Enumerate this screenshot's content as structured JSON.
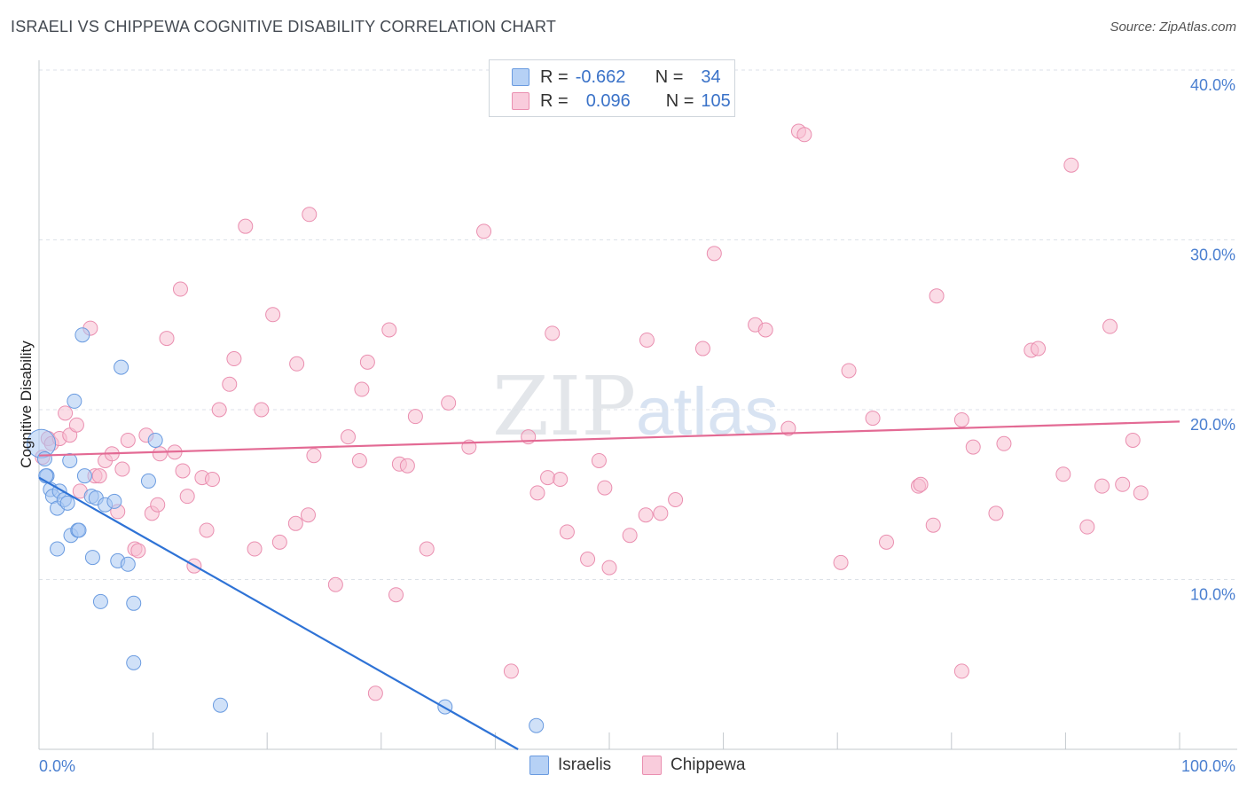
{
  "title": "ISRAELI VS CHIPPEWA COGNITIVE DISABILITY CORRELATION CHART",
  "source": "Source: ZipAtlas.com",
  "watermark": {
    "zip": "ZIP",
    "atlas": "atlas"
  },
  "legend": {
    "rows": [
      {
        "r_label": "R =",
        "r_value": "-0.662",
        "n_label": "N =",
        "n_value": "34"
      },
      {
        "r_label": "R =",
        "r_value": "0.096",
        "n_label": "N =",
        "n_value": "105"
      }
    ]
  },
  "bottom_legend": {
    "israelis": "Israelis",
    "chippewa": "Chippewa"
  },
  "colors": {
    "israelis_fill": "#a9c8f2",
    "israelis_stroke": "#6a9be0",
    "israelis_line": "#2f73d6",
    "chippewa_fill": "#f7bfd2",
    "chippewa_stroke": "#ea8fb0",
    "chippewa_line": "#e36a94",
    "tick_text": "#4a7fd0",
    "grid": "#dde2e8"
  },
  "chart_data": {
    "type": "scatter",
    "title": "ISRAELI VS CHIPPEWA COGNITIVE DISABILITY CORRELATION CHART",
    "xlabel": "",
    "ylabel": "Cognitive Disability",
    "xlim": [
      0,
      100
    ],
    "ylim": [
      0,
      40
    ],
    "x_tick_labels": [
      "0.0%",
      "100.0%"
    ],
    "y_ticks": [
      10,
      20,
      30,
      40
    ],
    "y_tick_labels": [
      "10.0%",
      "20.0%",
      "30.0%",
      "40.0%"
    ],
    "series": [
      {
        "name": "Israelis",
        "r": -0.662,
        "n": 34,
        "trend": {
          "x": [
            0,
            42
          ],
          "y": [
            16.0,
            0.0
          ]
        },
        "points": [
          [
            0.2,
            18.0
          ],
          [
            0.5,
            17.1
          ],
          [
            0.7,
            16.1
          ],
          [
            1.0,
            15.3
          ],
          [
            1.2,
            14.9
          ],
          [
            1.6,
            14.2
          ],
          [
            1.8,
            15.2
          ],
          [
            2.2,
            14.7
          ],
          [
            2.5,
            14.5
          ],
          [
            2.7,
            17.0
          ],
          [
            2.8,
            12.6
          ],
          [
            3.1,
            20.5
          ],
          [
            3.4,
            12.9
          ],
          [
            3.5,
            12.9
          ],
          [
            3.8,
            24.4
          ],
          [
            4.0,
            16.1
          ],
          [
            4.6,
            14.9
          ],
          [
            4.7,
            11.3
          ],
          [
            5.0,
            14.8
          ],
          [
            5.4,
            8.7
          ],
          [
            5.8,
            14.4
          ],
          [
            6.6,
            14.6
          ],
          [
            6.9,
            11.1
          ],
          [
            7.2,
            22.5
          ],
          [
            7.8,
            10.9
          ],
          [
            8.3,
            5.1
          ],
          [
            8.3,
            8.6
          ],
          [
            9.6,
            15.8
          ],
          [
            10.2,
            18.2
          ],
          [
            15.9,
            2.6
          ],
          [
            35.6,
            2.5
          ],
          [
            43.6,
            1.4
          ],
          [
            1.6,
            11.8
          ],
          [
            0.6,
            16.1
          ]
        ]
      },
      {
        "name": "Chippewa",
        "r": 0.096,
        "n": 105,
        "trend": {
          "x": [
            0,
            100
          ],
          "y": [
            17.3,
            19.3
          ]
        },
        "points": [
          [
            0.3,
            17.2
          ],
          [
            0.8,
            18.3
          ],
          [
            1.1,
            18.0
          ],
          [
            1.8,
            18.3
          ],
          [
            2.3,
            19.8
          ],
          [
            2.7,
            18.5
          ],
          [
            3.3,
            19.1
          ],
          [
            3.6,
            15.2
          ],
          [
            4.5,
            24.8
          ],
          [
            4.9,
            16.1
          ],
          [
            5.3,
            16.1
          ],
          [
            5.8,
            17.0
          ],
          [
            6.4,
            17.4
          ],
          [
            6.9,
            14.0
          ],
          [
            7.3,
            16.5
          ],
          [
            7.8,
            18.2
          ],
          [
            8.4,
            11.8
          ],
          [
            8.7,
            11.7
          ],
          [
            9.4,
            18.5
          ],
          [
            9.9,
            13.9
          ],
          [
            10.4,
            14.4
          ],
          [
            10.6,
            17.4
          ],
          [
            11.2,
            24.2
          ],
          [
            11.9,
            17.5
          ],
          [
            12.4,
            27.1
          ],
          [
            12.6,
            16.4
          ],
          [
            13.0,
            14.9
          ],
          [
            13.6,
            10.8
          ],
          [
            14.3,
            16.0
          ],
          [
            14.7,
            12.9
          ],
          [
            15.2,
            15.9
          ],
          [
            15.8,
            20.0
          ],
          [
            16.7,
            21.5
          ],
          [
            17.1,
            23.0
          ],
          [
            18.1,
            30.8
          ],
          [
            18.9,
            11.8
          ],
          [
            19.5,
            20.0
          ],
          [
            20.5,
            25.6
          ],
          [
            21.1,
            12.2
          ],
          [
            22.5,
            13.3
          ],
          [
            22.6,
            22.7
          ],
          [
            23.6,
            13.8
          ],
          [
            23.7,
            31.5
          ],
          [
            24.1,
            17.3
          ],
          [
            26.0,
            9.7
          ],
          [
            27.1,
            18.4
          ],
          [
            28.1,
            17.0
          ],
          [
            28.3,
            21.2
          ],
          [
            28.8,
            22.8
          ],
          [
            29.5,
            3.3
          ],
          [
            30.7,
            24.7
          ],
          [
            31.3,
            9.1
          ],
          [
            31.6,
            16.8
          ],
          [
            32.3,
            16.7
          ],
          [
            33.0,
            19.6
          ],
          [
            34.0,
            11.8
          ],
          [
            35.9,
            20.4
          ],
          [
            37.7,
            17.8
          ],
          [
            39.0,
            30.5
          ],
          [
            41.4,
            4.6
          ],
          [
            42.9,
            18.4
          ],
          [
            43.7,
            15.1
          ],
          [
            44.6,
            16.0
          ],
          [
            45.0,
            24.5
          ],
          [
            45.7,
            15.9
          ],
          [
            46.3,
            12.8
          ],
          [
            48.1,
            11.2
          ],
          [
            49.1,
            17.0
          ],
          [
            49.6,
            15.4
          ],
          [
            50.0,
            10.7
          ],
          [
            51.8,
            12.6
          ],
          [
            53.2,
            13.8
          ],
          [
            53.3,
            24.1
          ],
          [
            54.5,
            13.9
          ],
          [
            55.8,
            14.7
          ],
          [
            58.2,
            23.6
          ],
          [
            59.2,
            29.2
          ],
          [
            62.8,
            25.0
          ],
          [
            63.7,
            24.7
          ],
          [
            65.7,
            18.9
          ],
          [
            66.6,
            36.4
          ],
          [
            67.1,
            36.2
          ],
          [
            70.3,
            11.0
          ],
          [
            71.0,
            22.3
          ],
          [
            73.1,
            19.5
          ],
          [
            74.3,
            12.2
          ],
          [
            77.1,
            15.5
          ],
          [
            77.3,
            15.6
          ],
          [
            78.4,
            13.2
          ],
          [
            78.7,
            26.7
          ],
          [
            80.9,
            19.4
          ],
          [
            80.9,
            4.6
          ],
          [
            81.9,
            17.8
          ],
          [
            83.9,
            13.9
          ],
          [
            84.6,
            18.0
          ],
          [
            87.0,
            23.5
          ],
          [
            87.6,
            23.6
          ],
          [
            89.8,
            16.2
          ],
          [
            90.5,
            34.4
          ],
          [
            91.9,
            13.1
          ],
          [
            93.2,
            15.5
          ],
          [
            93.9,
            24.9
          ],
          [
            95.0,
            15.6
          ],
          [
            95.9,
            18.2
          ],
          [
            96.6,
            15.1
          ]
        ]
      }
    ]
  }
}
